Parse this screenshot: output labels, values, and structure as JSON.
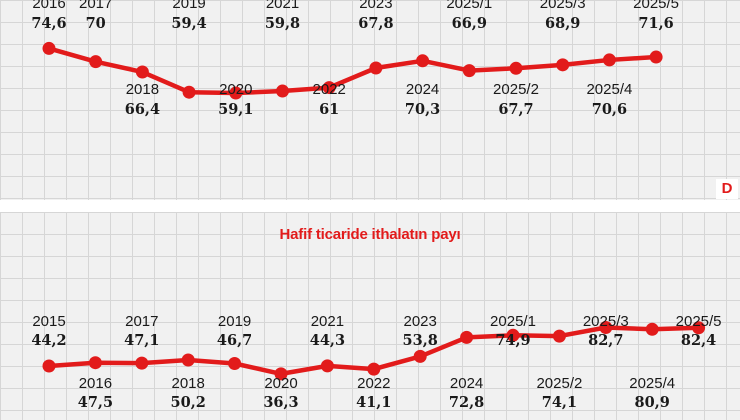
{
  "brand": {
    "badge": "D"
  },
  "colors": {
    "line": "#e21b1b",
    "text": "#1a1a1a",
    "panel": "#f1f1f1",
    "grid": "#d6d6d6"
  },
  "chart_data": [
    {
      "type": "line",
      "title": "",
      "categories": [
        "2016",
        "2017",
        "2018",
        "2019",
        "2020",
        "2021",
        "2022",
        "2023",
        "2024",
        "2025/1",
        "2025/2",
        "2025/3",
        "2025/4",
        "2025/5"
      ],
      "values": [
        74.6,
        70,
        66.4,
        59.4,
        59.1,
        59.8,
        61,
        67.8,
        70.3,
        66.9,
        67.7,
        68.9,
        70.6,
        71.6
      ],
      "value_labels": [
        "74,6",
        "70",
        "66,4",
        "59,4",
        "59,1",
        "59,8",
        "61",
        "67,8",
        "70,3",
        "66,9",
        "67,7",
        "68,9",
        "70,6",
        "71,6"
      ],
      "grid": true,
      "xlabel": "",
      "ylabel": ""
    },
    {
      "type": "line",
      "title": "Hafif ticaride ithalatın payı",
      "categories": [
        "2015",
        "2016",
        "2017",
        "2018",
        "2019",
        "2020",
        "2021",
        "2022",
        "2023",
        "2024",
        "2025/1",
        "2025/2",
        "2025/3",
        "2025/4",
        "2025/5"
      ],
      "values": [
        44.2,
        47.5,
        47.1,
        50.2,
        46.7,
        36.3,
        44.3,
        41.1,
        53.8,
        72.8,
        74.9,
        74.1,
        82.7,
        80.9,
        82.4
      ],
      "value_labels": [
        "44,2",
        "47,5",
        "47,1",
        "50,2",
        "46,7",
        "36,3",
        "44,3",
        "41,1",
        "53,8",
        "72,8",
        "74,9",
        "74,1",
        "82,7",
        "80,9",
        "82,4"
      ],
      "grid": true,
      "xlabel": "",
      "ylabel": ""
    }
  ]
}
